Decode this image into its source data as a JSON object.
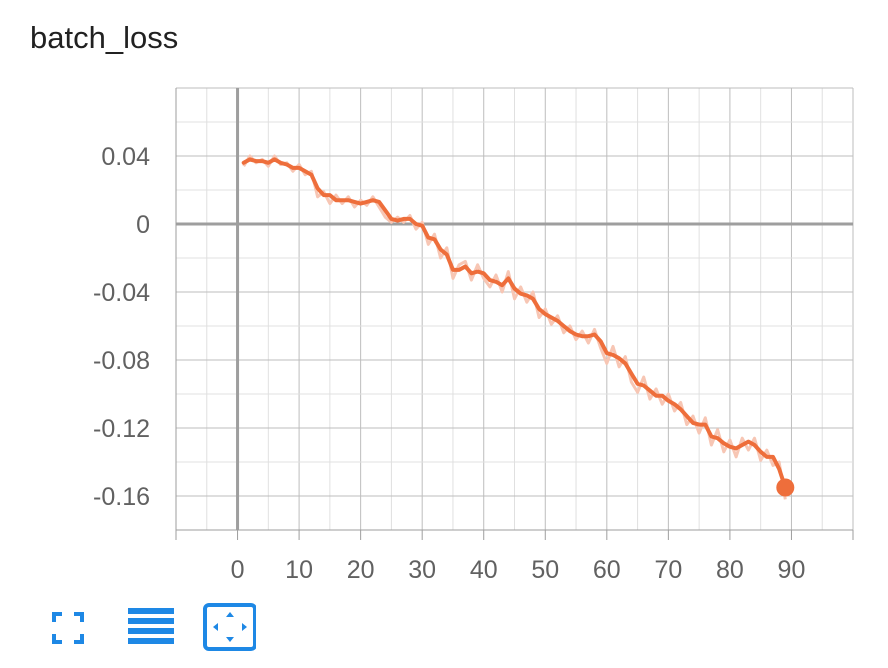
{
  "chart_data": {
    "type": "line",
    "title": "batch_loss",
    "xlabel": "",
    "ylabel": "",
    "xlim": [
      -10,
      100
    ],
    "ylim": [
      -0.18,
      0.08
    ],
    "x_ticks": [
      0,
      10,
      20,
      30,
      40,
      50,
      60,
      70,
      80,
      90
    ],
    "x_tick_labels": [
      "0",
      "10",
      "20",
      "30",
      "40",
      "50",
      "60",
      "70",
      "80",
      "90"
    ],
    "y_ticks": [
      0.04,
      0,
      -0.04,
      -0.08,
      -0.12,
      -0.16
    ],
    "y_tick_labels": [
      "0.04",
      "0",
      "-0.04",
      "-0.08",
      "-0.12",
      "-0.16"
    ],
    "grid": true,
    "series": [
      {
        "color": "#ee6e3b",
        "x": [
          1,
          2,
          3,
          4,
          5,
          6,
          7,
          8,
          9,
          10,
          11,
          12,
          13,
          14,
          15,
          16,
          17,
          18,
          19,
          20,
          21,
          22,
          23,
          24,
          25,
          26,
          27,
          28,
          29,
          30,
          31,
          32,
          33,
          34,
          35,
          36,
          37,
          38,
          39,
          40,
          41,
          42,
          43,
          44,
          45,
          46,
          47,
          48,
          49,
          50,
          51,
          52,
          53,
          54,
          55,
          56,
          57,
          58,
          59,
          60,
          61,
          62,
          63,
          64,
          65,
          66,
          67,
          68,
          69,
          70,
          71,
          72,
          73,
          74,
          75,
          76,
          77,
          78,
          79,
          80,
          81,
          82,
          83,
          84,
          85,
          86,
          87,
          88,
          89
        ],
        "y": [
          0.036,
          0.038,
          0.037,
          0.037,
          0.036,
          0.038,
          0.036,
          0.035,
          0.033,
          0.033,
          0.031,
          0.029,
          0.021,
          0.017,
          0.017,
          0.014,
          0.014,
          0.014,
          0.013,
          0.012,
          0.013,
          0.014,
          0.013,
          0.008,
          0.003,
          0.002,
          0.003,
          0.003,
          0.0,
          -0.001,
          -0.008,
          -0.009,
          -0.015,
          -0.018,
          -0.027,
          -0.027,
          -0.025,
          -0.029,
          -0.028,
          -0.029,
          -0.033,
          -0.034,
          -0.036,
          -0.032,
          -0.038,
          -0.041,
          -0.042,
          -0.044,
          -0.05,
          -0.053,
          -0.055,
          -0.057,
          -0.06,
          -0.063,
          -0.065,
          -0.066,
          -0.066,
          -0.065,
          -0.069,
          -0.076,
          -0.077,
          -0.079,
          -0.082,
          -0.088,
          -0.094,
          -0.095,
          -0.098,
          -0.101,
          -0.101,
          -0.104,
          -0.106,
          -0.109,
          -0.113,
          -0.117,
          -0.118,
          -0.118,
          -0.125,
          -0.126,
          -0.129,
          -0.131,
          -0.132,
          -0.13,
          -0.128,
          -0.13,
          -0.134,
          -0.137,
          -0.137,
          -0.144,
          -0.155
        ]
      }
    ],
    "raw_series": {
      "color": "#f7c6b4",
      "y": [
        0.034,
        0.04,
        0.036,
        0.038,
        0.034,
        0.04,
        0.035,
        0.036,
        0.031,
        0.035,
        0.029,
        0.031,
        0.016,
        0.019,
        0.012,
        0.017,
        0.012,
        0.016,
        0.01,
        0.014,
        0.011,
        0.016,
        0.01,
        0.004,
        0.001,
        0.004,
        0.001,
        0.005,
        -0.003,
        0.001,
        -0.012,
        -0.006,
        -0.02,
        -0.014,
        -0.032,
        -0.024,
        -0.022,
        -0.033,
        -0.024,
        -0.032,
        -0.037,
        -0.03,
        -0.04,
        -0.028,
        -0.044,
        -0.037,
        -0.046,
        -0.04,
        -0.055,
        -0.05,
        -0.059,
        -0.054,
        -0.064,
        -0.06,
        -0.068,
        -0.063,
        -0.07,
        -0.062,
        -0.073,
        -0.082,
        -0.072,
        -0.084,
        -0.078,
        -0.093,
        -0.099,
        -0.09,
        -0.103,
        -0.097,
        -0.106,
        -0.1,
        -0.11,
        -0.105,
        -0.118,
        -0.113,
        -0.123,
        -0.114,
        -0.13,
        -0.121,
        -0.134,
        -0.127,
        -0.137,
        -0.126,
        -0.133,
        -0.126,
        -0.139,
        -0.133,
        -0.142,
        -0.14,
        -0.162
      ]
    }
  },
  "toolbar": {
    "buttons": [
      {
        "icon": "fullscreen-icon"
      },
      {
        "icon": "log-scale-icon"
      },
      {
        "icon": "fit-domain-icon"
      }
    ],
    "accent": "#1e88e5"
  }
}
